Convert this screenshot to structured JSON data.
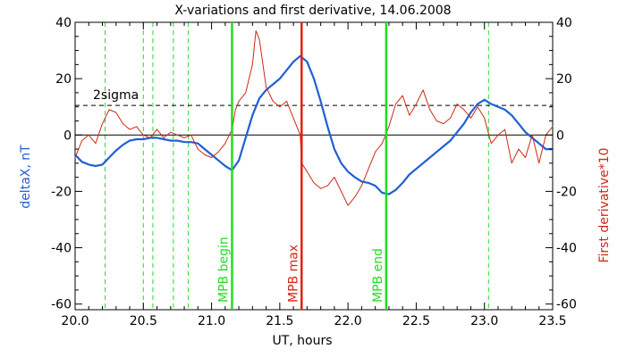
{
  "chart_data": {
    "type": "line",
    "title": "X-variations and first derivative, 14.06.2008",
    "xlabel": "UT, hours",
    "ylabel_left": "deltaX, nT",
    "ylabel_right": "First derivative*10",
    "xlim": [
      20.0,
      23.5
    ],
    "ylim": [
      -62,
      40
    ],
    "x_ticks": [
      "20.0",
      "20.5",
      "21.0",
      "21.5",
      "22.0",
      "22.5",
      "23.0",
      "23.5"
    ],
    "x_tick_values": [
      20.0,
      20.5,
      21.0,
      21.5,
      22.0,
      22.5,
      23.0,
      23.5
    ],
    "y_ticks": [
      "40",
      "20",
      "0",
      "-20",
      "-40",
      "-60"
    ],
    "y_tick_values": [
      40,
      20,
      0,
      -20,
      -40,
      -60
    ],
    "zero_line": 0,
    "sigma": {
      "label": "2sigma",
      "value": 10.5
    },
    "colors": {
      "deltaX": "#1f5fd6",
      "derivative": "#cc2a14",
      "green": "#22dd22",
      "red": "#dd2211",
      "axis": "#000000"
    },
    "series": [
      {
        "name": "deltaX, nT",
        "axis": "left",
        "x": [
          20.0,
          20.05,
          20.1,
          20.15,
          20.2,
          20.25,
          20.3,
          20.35,
          20.4,
          20.45,
          20.5,
          20.55,
          20.6,
          20.65,
          20.7,
          20.75,
          20.8,
          20.85,
          20.9,
          20.95,
          21.0,
          21.05,
          21.1,
          21.15,
          21.2,
          21.25,
          21.3,
          21.35,
          21.4,
          21.45,
          21.5,
          21.55,
          21.6,
          21.65,
          21.7,
          21.75,
          21.8,
          21.85,
          21.9,
          21.95,
          22.0,
          22.05,
          22.1,
          22.15,
          22.2,
          22.25,
          22.3,
          22.35,
          22.4,
          22.45,
          22.5,
          22.55,
          22.6,
          22.65,
          22.7,
          22.75,
          22.8,
          22.85,
          22.9,
          22.95,
          23.0,
          23.05,
          23.1,
          23.15,
          23.2,
          23.25,
          23.3,
          23.35,
          23.4,
          23.45,
          23.5
        ],
        "values": [
          -7,
          -9.5,
          -10.5,
          -11,
          -10.5,
          -8,
          -5.5,
          -3.5,
          -2,
          -1.5,
          -1.5,
          -1,
          -1,
          -1.5,
          -2,
          -2,
          -2.5,
          -2.5,
          -3,
          -5,
          -7,
          -9,
          -11,
          -12.5,
          -9,
          -1,
          7,
          13,
          16,
          18,
          20,
          23,
          26,
          28,
          26,
          20,
          12,
          3,
          -5,
          -10,
          -13,
          -15,
          -16.5,
          -17,
          -18,
          -20.5,
          -21,
          -19.5,
          -17,
          -14,
          -12,
          -10,
          -8,
          -6,
          -4,
          -2,
          1,
          4,
          8,
          11,
          12.5,
          11,
          10,
          9,
          7,
          4,
          1,
          -1,
          -3,
          -5,
          -5
        ],
        "color": "#1f5fd6"
      },
      {
        "name": "First derivative*10",
        "axis": "right",
        "x": [
          20.0,
          20.05,
          20.1,
          20.15,
          20.2,
          20.25,
          20.3,
          20.35,
          20.4,
          20.45,
          20.5,
          20.55,
          20.6,
          20.65,
          20.7,
          20.75,
          20.8,
          20.85,
          20.9,
          20.95,
          21.0,
          21.05,
          21.1,
          21.15,
          21.175,
          21.2,
          21.25,
          21.3,
          21.325,
          21.35,
          21.4,
          21.45,
          21.5,
          21.55,
          21.6,
          21.65,
          21.66,
          21.7,
          21.75,
          21.8,
          21.85,
          21.9,
          21.95,
          22.0,
          22.05,
          22.1,
          22.15,
          22.2,
          22.25,
          22.3,
          22.35,
          22.4,
          22.45,
          22.5,
          22.55,
          22.6,
          22.65,
          22.7,
          22.75,
          22.8,
          22.85,
          22.9,
          22.95,
          23.0,
          23.05,
          23.1,
          23.15,
          23.2,
          23.25,
          23.3,
          23.35,
          23.4,
          23.45,
          23.5
        ],
        "values": [
          -8,
          -2,
          0,
          -3,
          4,
          9,
          8,
          4,
          2,
          3,
          0,
          -1,
          2,
          -1,
          1,
          0,
          -1,
          0,
          -5,
          -7,
          -8,
          -6,
          -3,
          2,
          9,
          12,
          15,
          25,
          37,
          34,
          17,
          12,
          10,
          12,
          6,
          0,
          -10,
          -13,
          -17,
          -19,
          -18,
          -15,
          -20,
          -25,
          -22,
          -18,
          -12,
          -6,
          -3,
          3,
          11,
          14,
          7,
          11,
          16,
          9,
          5,
          4,
          6,
          11,
          9,
          6,
          10,
          6,
          -3,
          0,
          2,
          -10,
          -5,
          -8,
          0,
          -10,
          0,
          3
        ],
        "color": "#cc2a14"
      }
    ],
    "events": [
      {
        "label": "MPB begin",
        "x": 21.15,
        "color": "#22dd22",
        "style": "solid"
      },
      {
        "label": "MPB max",
        "x": 21.66,
        "color": "#dd2211",
        "style": "solid"
      },
      {
        "label": "MPB end",
        "x": 22.28,
        "color": "#22dd22",
        "style": "solid"
      }
    ],
    "dashed_lines_x": [
      20.22,
      20.5,
      20.57,
      20.72,
      20.83,
      23.03
    ],
    "grid": false,
    "legend": "none"
  }
}
